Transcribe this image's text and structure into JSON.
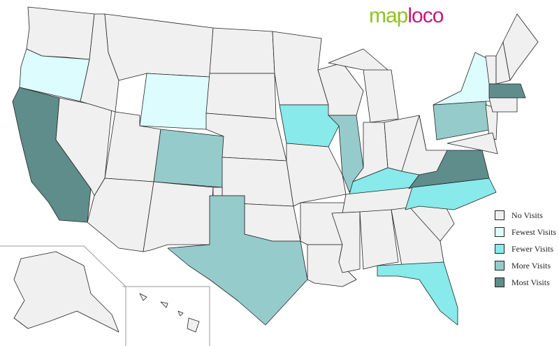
{
  "logo": {
    "part1": "map",
    "part2": "loco"
  },
  "legend": [
    {
      "key": "none",
      "label": "No Visits",
      "color": "#f0f0f0"
    },
    {
      "key": "fewest",
      "label": "Fewest Visits",
      "color": "#dcfcfd"
    },
    {
      "key": "fewer",
      "label": "Fewer Visits",
      "color": "#88eaea"
    },
    {
      "key": "more",
      "label": "More Visits",
      "color": "#96cbcb"
    },
    {
      "key": "most",
      "label": "Most Visits",
      "color": "#5f8d8b"
    }
  ],
  "states": {
    "WA": "none",
    "OR": "fewest",
    "CA": "most",
    "NV": "none",
    "ID": "none",
    "MT": "none",
    "WY": "fewest",
    "UT": "none",
    "AZ": "none",
    "CO": "more",
    "NM": "none",
    "ND": "none",
    "SD": "none",
    "NE": "none",
    "KS": "none",
    "OK": "none",
    "TX": "more",
    "MN": "none",
    "IA": "fewer",
    "MO": "none",
    "AR": "none",
    "LA": "none",
    "WI": "none",
    "IL": "more",
    "MI": "none",
    "IN": "none",
    "OH": "none",
    "KY": "fewer",
    "TN": "none",
    "MS": "none",
    "AL": "none",
    "GA": "none",
    "FL": "fewer",
    "SC": "none",
    "NC": "fewer",
    "VA": "most",
    "WV": "none",
    "PA": "more",
    "NY": "fewest",
    "NJ": "none",
    "MD": "none",
    "VT": "none",
    "NH": "none",
    "ME": "none",
    "MA": "most",
    "CT": "none",
    "AK": "none",
    "HI": "none"
  }
}
